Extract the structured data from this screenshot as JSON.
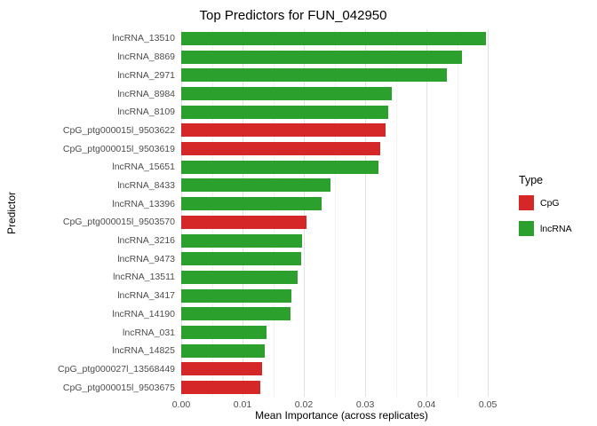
{
  "chart_data": {
    "type": "bar",
    "orientation": "horizontal",
    "title": "Top Predictors for FUN_042950",
    "xlabel": "Mean Importance (across replicates)",
    "ylabel": "Predictor",
    "grid": true,
    "xlim": [
      0,
      0.0523
    ],
    "x_ticks": [
      0.0,
      0.01,
      0.02,
      0.03,
      0.04,
      0.05
    ],
    "x_tick_labels": [
      "0.00",
      "0.01",
      "0.02",
      "0.03",
      "0.04",
      "0.05"
    ],
    "categories": [
      "lncRNA_13510",
      "lncRNA_8869",
      "lncRNA_2971",
      "lncRNA_8984",
      "lncRNA_8109",
      "CpG_ptg000015l_9503622",
      "CpG_ptg000015l_9503619",
      "lncRNA_15651",
      "lncRNA_8433",
      "lncRNA_13396",
      "CpG_ptg000015l_9503570",
      "lncRNA_3216",
      "lncRNA_9473",
      "lncRNA_13511",
      "lncRNA_3417",
      "lncRNA_14190",
      "lncRNA_031",
      "lncRNA_14825",
      "CpG_ptg000027l_13568449",
      "CpG_ptg000015l_9503675"
    ],
    "values": [
      0.0497,
      0.0458,
      0.0433,
      0.0343,
      0.0338,
      0.0333,
      0.0325,
      0.0322,
      0.0243,
      0.0229,
      0.0204,
      0.0197,
      0.0196,
      0.019,
      0.018,
      0.0178,
      0.0139,
      0.0136,
      0.0132,
      0.0129
    ],
    "types": [
      "lncRNA",
      "lncRNA",
      "lncRNA",
      "lncRNA",
      "lncRNA",
      "CpG",
      "CpG",
      "lncRNA",
      "lncRNA",
      "lncRNA",
      "CpG",
      "lncRNA",
      "lncRNA",
      "lncRNA",
      "lncRNA",
      "lncRNA",
      "lncRNA",
      "lncRNA",
      "CpG",
      "CpG"
    ],
    "colors": {
      "CpG": "#d62728",
      "lncRNA": "#2ca02c"
    },
    "legend": {
      "title": "Type",
      "position": "right",
      "entries": [
        {
          "label": "CpG",
          "type": "CpG",
          "color": "#d62728"
        },
        {
          "label": "lncRNA",
          "type": "lncRNA",
          "color": "#2ca02c"
        }
      ]
    }
  }
}
